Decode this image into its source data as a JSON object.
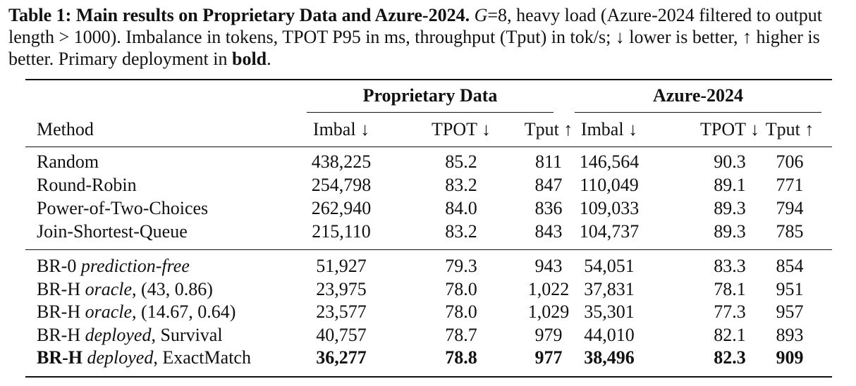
{
  "caption": {
    "label": "Table 1:",
    "title": "Main results on Proprietary Data and Azure-2024.",
    "var": "G",
    "eq": "=8",
    "text_a": ", heavy load (Azure-2024 filtered to output length > 1000). Imbalance in tokens, TPOT P95 in ms, throughput (Tput) in tok/s; ↓ lower is better, ↑ higher is better. Primary deployment in",
    "bold_word": "bold",
    "end": "."
  },
  "table": {
    "groups": [
      "Proprietary Data",
      "Azure-2024"
    ],
    "method_header": "Method",
    "columns": [
      "Imbal ↓",
      "TPOT ↓",
      "Tput ↑",
      "Imbal ↓",
      "TPOT ↓",
      "Tput ↑"
    ],
    "baselines": [
      {
        "name": "Random",
        "values": [
          "438,225",
          "85.2",
          "811",
          "146,564",
          "90.3",
          "706"
        ]
      },
      {
        "name": "Round-Robin",
        "values": [
          "254,798",
          "83.2",
          "847",
          "110,049",
          "89.1",
          "771"
        ]
      },
      {
        "name": "Power-of-Two-Choices",
        "values": [
          "262,940",
          "84.0",
          "836",
          "109,033",
          "89.3",
          "794"
        ]
      },
      {
        "name": "Join-Shortest-Queue",
        "values": [
          "215,110",
          "83.2",
          "843",
          "104,737",
          "89.3",
          "785"
        ]
      }
    ],
    "ours": [
      {
        "name": "BR-0",
        "italic": "prediction-free",
        "suffix": "",
        "values": [
          "51,927",
          "79.3",
          "943",
          "54,051",
          "83.3",
          "854"
        ]
      },
      {
        "name": "BR-H",
        "italic": "oracle",
        "suffix": ", (43, 0.86)",
        "values": [
          "23,975",
          "78.0",
          "1,022",
          "37,831",
          "78.1",
          "951"
        ]
      },
      {
        "name": "BR-H",
        "italic": "oracle",
        "suffix": ", (14.67, 0.64)",
        "values": [
          "23,577",
          "78.0",
          "1,029",
          "35,301",
          "77.3",
          "957"
        ]
      },
      {
        "name": "BR-H",
        "italic": "deployed",
        "suffix": ", Survival",
        "values": [
          "40,757",
          "78.7",
          "979",
          "44,010",
          "82.1",
          "893"
        ]
      },
      {
        "name": "BR-H",
        "italic": "deployed",
        "suffix": ", ExactMatch",
        "values": [
          "36,277",
          "78.8",
          "977",
          "38,496",
          "82.3",
          "909"
        ]
      }
    ]
  }
}
